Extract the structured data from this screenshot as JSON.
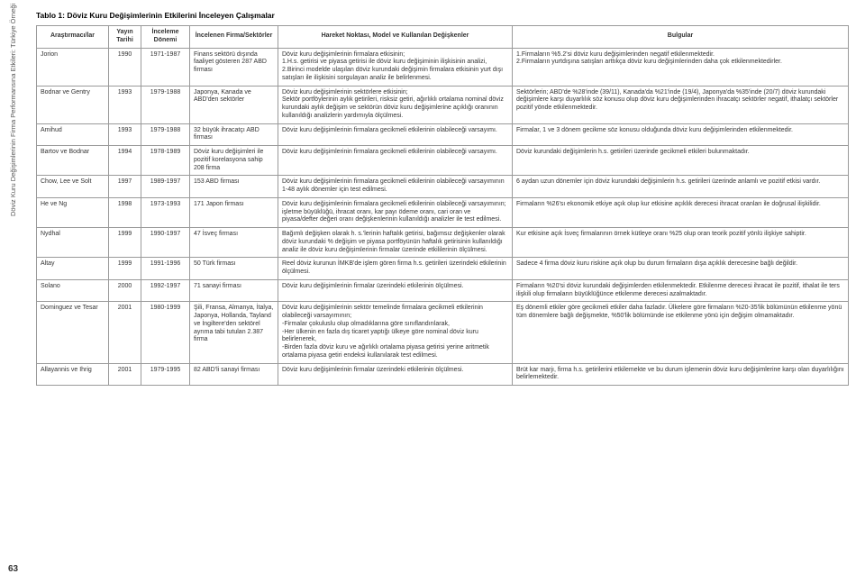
{
  "title": "Tablo 1: Döviz Kuru Değişimlerinin Etkilerini İnceleyen Çalışmalar",
  "sidebar_text": "Döviz Kuru Değişimlerinin Firma Performansına Etkileri: Türkiye Örneği",
  "page_number": "63",
  "columns": [
    "Araştırmacı/lar",
    "Yayın Tarihi",
    "İnceleme Dönemi",
    "İncelenen Firma/Sektörler",
    "Hareket Noktası, Model ve Kullanılan Değişkenler",
    "Bulgular"
  ],
  "rows": [
    {
      "researcher": "Jorion",
      "year": "1990",
      "period": "1971-1987",
      "firms": "Finans sektörü dışında faaliyet gösteren 287 ABD firması",
      "model": "Döviz kuru değişimlerinin firmalara etkisinin;\n1.H.s. getirisi ve piyasa getirisi ile döviz kuru değişiminin ilişkisinin analizi,\n2.Birinci modelde ulaşılan döviz kurundaki değişimin firmalara etkisinin yurt dışı satışları ile ilişkisini sorgulayan analiz ile belirlenmesi.",
      "findings": "1.Firmaların %5.2'si döviz kuru değişimlerinden negatif etkilenmektedir.\n2.Firmaların yurtdışına satışları arttıkça döviz kuru değişimlerinden daha çok etkilenmektedirler."
    },
    {
      "researcher": "Bodnar ve Gentry",
      "year": "1993",
      "period": "1979-1988",
      "firms": "Japonya, Kanada ve ABD'den sektörler",
      "model": "Döviz kuru değişimlerinin sektörlere etkisinin;\nSektör portföylerinin aylık getirileri, risksiz getiri, ağırlıklı ortalama nominal döviz kurundaki aylık değişim ve sektörün döviz kuru değişimlerine açıklığı oranının kullanıldığı analizlerin yardımıyla ölçülmesi.",
      "findings": "Sektörlerin; ABD'de %28'inde (39/11), Kanada'da %21'inde (19/4), Japonya'da %35'inde (20/7) döviz kurundaki değişimlere karşı duyarlılık söz konusu olup döviz kuru değişimlerinden ihracatçı sektörler negatif, ithalatçı sektörler pozitif yönde etkilenmektedir."
    },
    {
      "researcher": "Amihud",
      "year": "1993",
      "period": "1979-1988",
      "firms": "32 büyük ihracatçı ABD firması",
      "model": "Döviz kuru değişimlerinin firmalara gecikmeli etkilerinin olabileceği varsayımı.",
      "findings": "Firmalar, 1 ve 3 dönem gecikme söz konusu olduğunda döviz kuru değişimlerinden etkilenmektedir."
    },
    {
      "researcher": "Bartov ve Bodnar",
      "year": "1994",
      "period": "1978-1989",
      "firms": "Döviz kuru değişimleri ile pozitif korelasyona sahip 208 firma",
      "model": "Döviz kuru değişimlerinin firmalara gecikmeli etkilerinin olabileceği varsayımı.",
      "findings": "Döviz kurundaki değişimlerin h.s. getirileri üzerinde gecikmeli etkileri bulunmaktadır."
    },
    {
      "researcher": "Chow, Lee ve Solt",
      "year": "1997",
      "period": "1989-1997",
      "firms": "153 ABD firması",
      "model": "Döviz kuru değişimlerinin firmalara gecikmeli etkilerinin olabileceği varsayımının 1-48 aylık dönemler için test edilmesi.",
      "findings": "6 aydan uzun dönemler için döviz kurundaki değişimlerin h.s. getirileri üzerinde anlamlı ve pozitif etkisi vardır."
    },
    {
      "researcher": "He ve Ng",
      "year": "1998",
      "period": "1973-1993",
      "firms": "171 Japon firması",
      "model": "Döviz kuru değişimlerinin firmalara gecikmeli etkilerinin olabileceği varsayımının; işletme büyüklüğü, ihracat oranı, kar payı ödeme oranı, cari oran ve piyasa/defter değeri oranı değişkenlerinin kullanıldığı analizler ile test edilmesi.",
      "findings": "Firmaların %26'sı ekonomik etkiye açık olup kur etkisine açıklık derecesi ihracat oranları ile doğrusal ilişkilidir."
    },
    {
      "researcher": "Nydhal",
      "year": "1999",
      "period": "1990-1997",
      "firms": "47 İsveç firması",
      "model": "Bağımlı değişken olarak h. s.'lerinin haftalık getirisi, bağımsız değişkenler olarak döviz kurundaki % değişim ve piyasa portföyünün haftalık getirisinin kullanıldığı analiz ile döviz kuru değişimlerinin firmalar üzerinde etkililerinin ölçülmesi.",
      "findings": "Kur etkisine açık İsveç firmalarının örnek kütleye oranı %25 olup oran teorik pozitif yönlü ilişkiye sahiptir."
    },
    {
      "researcher": "Altay",
      "year": "1999",
      "period": "1991-1996",
      "firms": "50 Türk firması",
      "model": "Reel döviz kurunun İMKB'de işlem gören firma h.s. getirileri üzerindeki etkilerinin ölçülmesi.",
      "findings": "Sadece 4 firma döviz kuru riskine açık olup bu durum firmaların dışa açıklık derecesine bağlı değildir."
    },
    {
      "researcher": "Solano",
      "year": "2000",
      "period": "1992-1997",
      "firms": "71 sanayi firması",
      "model": "Döviz kuru değişimlerinin firmalar üzerindeki etkilerinin ölçülmesi.",
      "findings": "Firmaların %20'si döviz kurundaki değişimlerden etkilenmektedir. Etkilenme derecesi ihracat ile pozitif, ithalat ile ters ilişkili olup firmaların büyüklüğünce etkilenme derecesi azalmaktadır."
    },
    {
      "researcher": "Dominguez ve Tesar",
      "year": "2001",
      "period": "1980-1999",
      "firms": "Şili, Fransa, Almanya, İtalya, Japonya, Hollanda, Tayland ve İngiltere'den sektörel ayrıma tabi tutulan 2.387 firma",
      "model": "Döviz kuru değişimlerinin sektör temelinde firmalara gecikmeli etkilerinin olabileceği varsayımının;\n-Firmalar çokuluslu olup olmadıklarına göre sınıflandırılarak,\n-Her ülkenin en fazla dış ticaret yaptığı ülkeye göre nominal döviz kuru belirlenerek,\n-Birden fazla döviz kuru ve ağırlıklı ortalama piyasa getirisi yerine aritmetik ortalama piyasa getiri endeksi kullanılarak test edilmesi.",
      "findings": "Eş dönemli etkiler göre gecikmeli etkiler daha fazladır. Ülkelere göre firmaların %20-35'lik bölümünün etkilenme yönü tüm dönemlere bağlı değişmekte, %50'lik bölümünde ise etkilenme yönü için değişim olmamaktadır."
    },
    {
      "researcher": "Allayannis ve Ihrig",
      "year": "2001",
      "period": "1979-1995",
      "firms": "82 ABD'li sanayi firması",
      "model": "Döviz kuru değişimlerinin firmalar üzerindeki etkilerinin ölçülmesi.",
      "findings": "Brüt kar marjı, firma h.s. getirilerini etkilemekte ve bu durum işlemenin döviz kuru değişimlerine karşı olan duyarlılığını belirlemektedir."
    }
  ]
}
